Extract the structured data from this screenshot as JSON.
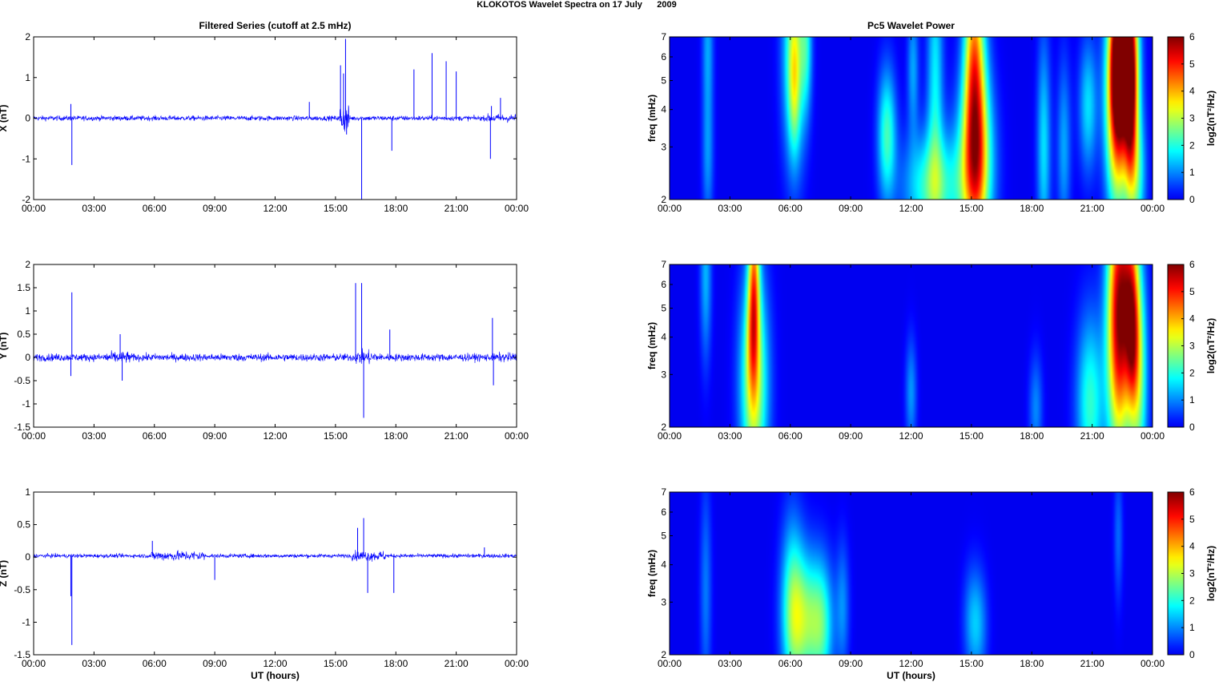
{
  "figure": {
    "suptitle": "KLOKOTOS Wavelet Spectra on 17 July      2009"
  },
  "chart_data": [
    {
      "type": "line",
      "panel": "filtered-x",
      "title": "Filtered Series (cutoff at 2.5 mHz)",
      "ylabel": "X (nT)",
      "xlabel": "",
      "ylim": [
        -2,
        2
      ],
      "yticks": [
        "2",
        "1",
        "0",
        "-1",
        "-2"
      ],
      "xticks": [
        "00:00",
        "03:00",
        "06:00",
        "09:00",
        "12:00",
        "15:00",
        "18:00",
        "21:00",
        "00:00"
      ],
      "xlim_hours": [
        0,
        24
      ],
      "series": [
        {
          "color": "#0000ff",
          "baseline": 0,
          "noise_amplitude": 0.06,
          "spikes": [
            [
              1.9,
              -1.15
            ],
            [
              1.85,
              0.35
            ],
            [
              13.7,
              0.4
            ],
            [
              15.25,
              1.3
            ],
            [
              15.4,
              1.1
            ],
            [
              15.5,
              1.95
            ],
            [
              15.55,
              -0.4
            ],
            [
              16.3,
              -2.0
            ],
            [
              17.8,
              -0.8
            ],
            [
              18.9,
              1.2
            ],
            [
              19.8,
              1.6
            ],
            [
              20.5,
              1.4
            ],
            [
              21.0,
              1.15
            ],
            [
              22.7,
              -1.0
            ],
            [
              22.75,
              0.3
            ],
            [
              23.2,
              0.5
            ]
          ],
          "bursts": [
            [
              15.2,
              15.7,
              0.7
            ],
            [
              22.5,
              24,
              0.2
            ]
          ]
        }
      ],
      "color_a": "#0000ff"
    },
    {
      "type": "line",
      "panel": "filtered-y",
      "title": "",
      "ylabel": "Y (nT)",
      "xlabel": "",
      "ylim": [
        -1.5,
        2
      ],
      "yticks": [
        "2",
        "1.5",
        "1",
        "0.5",
        "0",
        "-0.5",
        "-1",
        "-1.5"
      ],
      "xticks": [
        "00:00",
        "03:00",
        "06:00",
        "09:00",
        "12:00",
        "15:00",
        "18:00",
        "21:00",
        "00:00"
      ],
      "xlim_hours": [
        0,
        24
      ],
      "series": [
        {
          "color": "#0000ff",
          "baseline": 0,
          "noise_amplitude": 0.08,
          "spikes": [
            [
              1.9,
              1.4
            ],
            [
              1.85,
              -0.4
            ],
            [
              4.3,
              0.5
            ],
            [
              4.4,
              -0.5
            ],
            [
              16.0,
              1.6
            ],
            [
              16.3,
              1.6
            ],
            [
              16.4,
              -1.3
            ],
            [
              17.7,
              0.6
            ],
            [
              22.8,
              0.85
            ],
            [
              22.85,
              -0.6
            ]
          ],
          "bursts": [
            [
              3.5,
              4.8,
              0.25
            ],
            [
              16.0,
              17.0,
              0.3
            ],
            [
              23.0,
              24,
              0.2
            ]
          ]
        }
      ]
    },
    {
      "type": "line",
      "panel": "filtered-z",
      "title": "",
      "ylabel": "Z (nT)",
      "xlabel": "UT (hours)",
      "ylim": [
        -1.5,
        1
      ],
      "yticks": [
        "1",
        "0.5",
        "0",
        "-0.5",
        "-1",
        "-1.5"
      ],
      "xticks": [
        "00:00",
        "03:00",
        "06:00",
        "09:00",
        "12:00",
        "15:00",
        "18:00",
        "21:00",
        "00:00"
      ],
      "xlim_hours": [
        0,
        24
      ],
      "series": [
        {
          "color": "#0000ff",
          "baseline": 0.02,
          "noise_amplitude": 0.03,
          "spikes": [
            [
              1.9,
              -1.35
            ],
            [
              1.85,
              -0.6
            ],
            [
              5.9,
              0.25
            ],
            [
              9.0,
              -0.35
            ],
            [
              16.1,
              0.45
            ],
            [
              16.4,
              0.6
            ],
            [
              16.6,
              -0.55
            ],
            [
              17.9,
              -0.55
            ],
            [
              22.4,
              0.15
            ]
          ],
          "bursts": [
            [
              5.8,
              8.5,
              0.15
            ],
            [
              15.8,
              17.5,
              0.15
            ],
            [
              20.5,
              23.0,
              0.05
            ]
          ]
        }
      ]
    },
    {
      "type": "heatmap",
      "panel": "wavelet-x",
      "title": "Pc5 Wavelet Power",
      "ylabel": "freq (mHz)",
      "xlabel": "",
      "y_scale": "log",
      "ylim_mhz": [
        2,
        7
      ],
      "yticks": [
        "7",
        "6",
        "5",
        "4",
        "3",
        "2"
      ],
      "xticks": [
        "00:00",
        "03:00",
        "06:00",
        "09:00",
        "12:00",
        "15:00",
        "18:00",
        "21:00",
        "00:00"
      ],
      "colorbar_label": "log2(nT²/Hz)",
      "colorbar_ticks": [
        "6",
        "5",
        "4",
        "3",
        "2",
        "1",
        "0"
      ],
      "clim": [
        0,
        6
      ],
      "colormap": "jet",
      "blobs": [
        [
          1.9,
          6.5,
          0.05,
          0.08,
          1.2
        ],
        [
          1.9,
          2.6,
          0.05,
          0.06,
          0.9
        ],
        [
          6.2,
          6.2,
          0.1,
          0.1,
          2.6
        ],
        [
          6.2,
          4.8,
          0.05,
          0.06,
          1.3
        ],
        [
          6.8,
          6.5,
          0.05,
          0.06,
          1.4
        ],
        [
          10.8,
          3.3,
          0.08,
          0.06,
          2.2
        ],
        [
          12.1,
          5.5,
          0.05,
          0.06,
          1.2
        ],
        [
          13.2,
          5.0,
          0.07,
          0.12,
          1.7
        ],
        [
          13.1,
          2.2,
          0.25,
          0.05,
          2.3
        ],
        [
          15.2,
          2.6,
          0.15,
          0.08,
          3.3
        ],
        [
          15.2,
          4.3,
          0.1,
          0.12,
          2.8
        ],
        [
          15.1,
          6.5,
          0.08,
          0.08,
          1.7
        ],
        [
          18.6,
          3.0,
          0.06,
          0.1,
          1.6
        ],
        [
          19.6,
          3.0,
          0.06,
          0.08,
          1.2
        ],
        [
          20.8,
          4.1,
          0.08,
          0.06,
          1.6
        ],
        [
          22.25,
          4.5,
          0.1,
          0.1,
          5.7
        ],
        [
          22.3,
          6.2,
          0.06,
          0.06,
          3.4
        ],
        [
          22.9,
          5.8,
          0.08,
          0.08,
          4.6
        ],
        [
          22.9,
          4.2,
          0.05,
          0.08,
          2.2
        ],
        [
          23.2,
          2.4,
          0.08,
          0.06,
          2.1
        ]
      ]
    },
    {
      "type": "heatmap",
      "panel": "wavelet-y",
      "title": "",
      "ylabel": "freq (mHz)",
      "xlabel": "",
      "y_scale": "log",
      "ylim_mhz": [
        2,
        7
      ],
      "yticks": [
        "7",
        "6",
        "5",
        "4",
        "3",
        "2"
      ],
      "xticks": [
        "00:00",
        "03:00",
        "06:00",
        "09:00",
        "12:00",
        "15:00",
        "18:00",
        "21:00",
        "00:00"
      ],
      "colorbar_label": "log2(nT²/Hz)",
      "colorbar_ticks": [
        "6",
        "5",
        "4",
        "3",
        "2",
        "1",
        "0"
      ],
      "clim": [
        0,
        6
      ],
      "colormap": "jet",
      "blobs": [
        [
          1.8,
          6.5,
          0.05,
          0.08,
          1.3
        ],
        [
          4.2,
          6.5,
          0.05,
          0.08,
          3.1
        ],
        [
          4.2,
          2.8,
          0.12,
          0.1,
          3.2
        ],
        [
          4.1,
          4.0,
          0.05,
          0.06,
          1.1
        ],
        [
          12.0,
          2.6,
          0.05,
          0.05,
          1.1
        ],
        [
          18.2,
          2.3,
          0.06,
          0.05,
          1.0
        ],
        [
          20.9,
          2.4,
          0.12,
          0.08,
          2.1
        ],
        [
          22.3,
          4.6,
          0.1,
          0.12,
          5.6
        ],
        [
          22.9,
          5.8,
          0.08,
          0.1,
          2.8
        ],
        [
          23.3,
          3.0,
          0.08,
          0.1,
          2.6
        ],
        [
          23.0,
          4.0,
          0.05,
          0.06,
          1.8
        ]
      ]
    },
    {
      "type": "heatmap",
      "panel": "wavelet-z",
      "title": "",
      "ylabel": "freq (mHz)",
      "xlabel": "UT (hours)",
      "y_scale": "log",
      "ylim_mhz": [
        2,
        7
      ],
      "yticks": [
        "7",
        "6",
        "5",
        "4",
        "3",
        "2"
      ],
      "xticks": [
        "00:00",
        "03:00",
        "06:00",
        "09:00",
        "12:00",
        "15:00",
        "18:00",
        "21:00",
        "00:00"
      ],
      "colorbar_label": "log2(nT²/Hz)",
      "colorbar_ticks": [
        "6",
        "5",
        "4",
        "3",
        "2",
        "1",
        "0"
      ],
      "clim": [
        0,
        6
      ],
      "colormap": "jet",
      "blobs": [
        [
          1.8,
          3.3,
          0.05,
          0.1,
          0.9
        ],
        [
          6.1,
          2.9,
          0.1,
          0.08,
          2.0
        ],
        [
          6.8,
          2.6,
          0.15,
          0.06,
          2.4
        ],
        [
          7.6,
          2.5,
          0.1,
          0.06,
          1.6
        ],
        [
          8.6,
          2.9,
          0.06,
          0.06,
          1.0
        ],
        [
          15.0,
          2.6,
          0.08,
          0.05,
          0.9
        ],
        [
          15.4,
          2.5,
          0.08,
          0.05,
          0.9
        ],
        [
          22.3,
          5.0,
          0.04,
          0.06,
          0.8
        ]
      ]
    }
  ]
}
